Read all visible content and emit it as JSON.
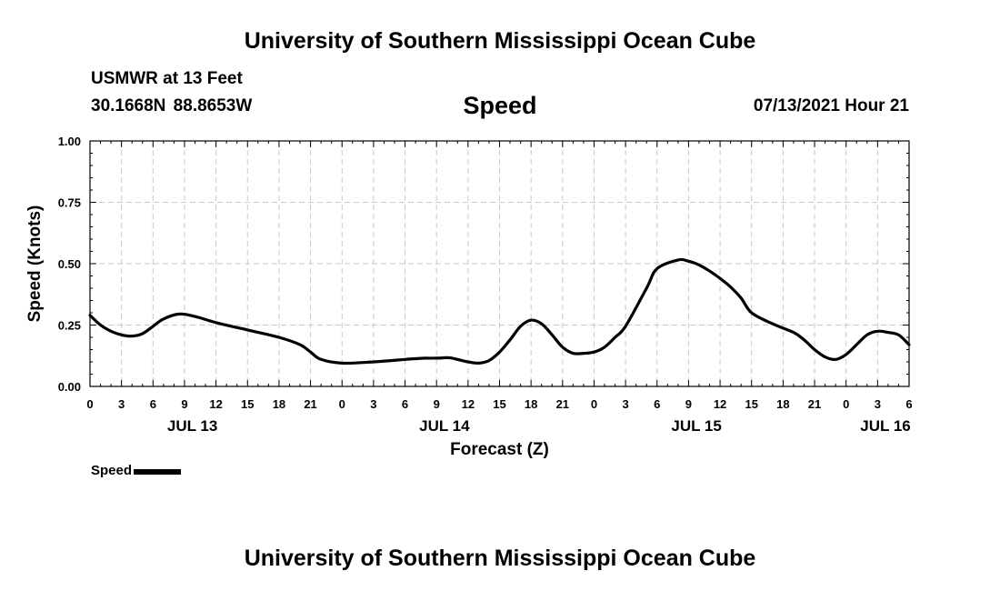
{
  "header": {
    "title": "University of Southern Mississippi Ocean Cube",
    "station": "USMWR at 13 Feet",
    "coordinates": "30.1668N  88.8653W",
    "plot_title": "Speed",
    "datetime": "07/13/2021 Hour 21"
  },
  "footer": {
    "title": "University of Southern Mississippi Ocean Cube"
  },
  "legend": {
    "label": "Speed",
    "color": "#000000"
  },
  "chart_data": {
    "type": "line",
    "title": "Speed",
    "xlabel": "Forecast (Z)",
    "ylabel": "Speed (Knots)",
    "ylim": [
      0,
      1
    ],
    "xlim_hours": [
      0,
      78
    ],
    "grid": true,
    "y_ticks": [
      "0.00",
      "0.25",
      "0.50",
      "0.75",
      "1.00"
    ],
    "y_tick_values": [
      0,
      0.25,
      0.5,
      0.75,
      1.0
    ],
    "x_tick_labels": [
      "0",
      "3",
      "6",
      "9",
      "12",
      "15",
      "18",
      "21",
      "0",
      "3",
      "6",
      "9",
      "12",
      "15",
      "18",
      "21",
      "0",
      "3",
      "6",
      "9",
      "12",
      "15",
      "18",
      "21",
      "0",
      "3",
      "6"
    ],
    "date_labels": [
      {
        "label": "JUL 13",
        "hour": 9.75
      },
      {
        "label": "JUL 14",
        "hour": 33.75
      },
      {
        "label": "JUL 15",
        "hour": 57.75
      },
      {
        "label": "JUL 16",
        "hour": 75.75
      }
    ],
    "series": [
      {
        "name": "Speed",
        "color": "#000000",
        "x_hours": [
          0,
          1,
          2,
          3,
          4,
          5,
          6,
          7,
          8.5,
          10,
          12,
          15,
          18,
          20,
          21,
          22,
          24,
          27,
          30,
          31,
          32,
          33,
          34,
          34.5,
          35,
          36,
          37,
          38,
          39,
          40,
          41,
          42,
          43,
          44,
          45,
          46,
          47,
          48,
          49,
          50,
          51,
          53,
          54,
          56,
          57,
          58,
          59,
          60,
          61,
          62,
          63,
          65,
          67,
          68,
          69,
          70,
          71,
          72,
          73,
          74,
          75,
          76,
          77,
          78
        ],
        "values": [
          0.29,
          0.25,
          0.225,
          0.21,
          0.205,
          0.215,
          0.245,
          0.275,
          0.295,
          0.285,
          0.26,
          0.23,
          0.2,
          0.17,
          0.14,
          0.11,
          0.095,
          0.1,
          0.11,
          0.113,
          0.115,
          0.115,
          0.117,
          0.115,
          0.11,
          0.1,
          0.095,
          0.105,
          0.14,
          0.19,
          0.245,
          0.27,
          0.255,
          0.21,
          0.16,
          0.135,
          0.135,
          0.14,
          0.16,
          0.2,
          0.245,
          0.4,
          0.48,
          0.515,
          0.51,
          0.495,
          0.47,
          0.44,
          0.405,
          0.36,
          0.3,
          0.255,
          0.22,
          0.19,
          0.15,
          0.12,
          0.11,
          0.13,
          0.17,
          0.21,
          0.225,
          0.22,
          0.21,
          0.17
        ]
      }
    ]
  }
}
